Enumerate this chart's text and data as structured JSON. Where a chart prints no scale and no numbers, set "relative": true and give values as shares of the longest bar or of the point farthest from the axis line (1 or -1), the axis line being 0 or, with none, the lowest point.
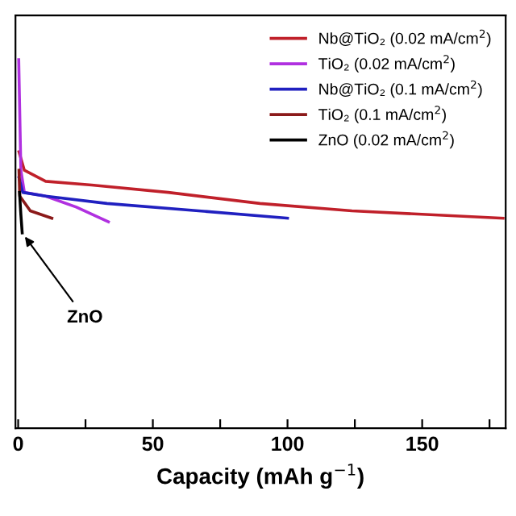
{
  "chart_data": {
    "type": "line",
    "relative": true,
    "xlabel": "Capacity (mAh g$^{−1}$)",
    "xlim": [
      -1,
      181
    ],
    "xticks": [
      0,
      {
        "value": 25,
        "label": null
      },
      50,
      {
        "value": 75,
        "label": null
      },
      100,
      {
        "value": 125,
        "label": null
      },
      150,
      {
        "value": 175,
        "label": null
      }
    ],
    "tick_labels": "x",
    "grid": false,
    "legend": "top right",
    "line_style": "solid",
    "marker": "none",
    "series": [
      {
        "name": "Nb@TiO₂ (0.02 mA/cm$^{2}$)",
        "color": "#c0202a",
        "x": [
          0.3,
          2.3,
          10.2,
          27.3,
          55.7,
          89.8,
          123.9,
          180
        ],
        "values": [
          0.75,
          0.7,
          0.67,
          0.66,
          0.64,
          0.61,
          0.59,
          0.57
        ]
      },
      {
        "name": "TiO₂ (0.02 mA/cm$^{2}$)",
        "color": "#b030e0",
        "x": [
          0.2,
          1,
          2.3,
          10.2,
          21.6,
          33.5
        ],
        "values": [
          1.0,
          0.7,
          0.64,
          0.63,
          0.6,
          0.56
        ]
      },
      {
        "name": "Nb@TiO₂ (0.1 mA/cm$^{2}$)",
        "color": "#2020c0",
        "x": [
          0.3,
          1.7,
          10.2,
          33,
          67,
          100
        ],
        "values": [
          0.68,
          0.64,
          0.63,
          0.61,
          0.59,
          0.57
        ]
      },
      {
        "name": "TiO₂ (0.1 mA/cm$^{2}$)",
        "color": "#8b1a1a",
        "x": [
          0.3,
          0.6,
          4.5,
          12.5
        ],
        "values": [
          0.7,
          0.63,
          0.59,
          0.57
        ]
      },
      {
        "name": "ZnO (0.02 mA/cm$^{2}$)",
        "color": "#000000",
        "x": [
          0.5,
          1,
          1.5
        ],
        "values": [
          0.64,
          0.58,
          0.53
        ]
      }
    ],
    "annotations": [
      {
        "text": "ZnO",
        "x": 1.5,
        "y": 0.53
      }
    ]
  }
}
